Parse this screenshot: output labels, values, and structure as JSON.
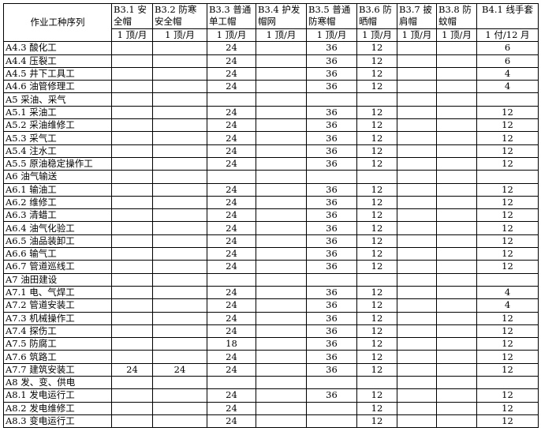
{
  "table": {
    "first_header": "作业工种序列",
    "columns": [
      {
        "name": "B3.1 安全帽",
        "unit": "1 顶/月"
      },
      {
        "name": "B3.2 防寒安全帽",
        "unit": "1 顶/月"
      },
      {
        "name": "B3.3 普通单工帽",
        "unit": "1 顶/月"
      },
      {
        "name": "B3.4 护发帽网",
        "unit": "1 顶/月"
      },
      {
        "name": "B3.5 普通防寒帽",
        "unit": "1 顶/月"
      },
      {
        "name": "B3.6 防晒帽",
        "unit": "1 顶/月"
      },
      {
        "name": "B3.7 披肩帽",
        "unit": "1 顶/月"
      },
      {
        "name": "B3.8 防蚊帽",
        "unit": "1 顶/月"
      },
      {
        "name": "B4.1 线手套",
        "unit": "1 付/12 月"
      }
    ],
    "rows": [
      {
        "label": "A4.3 酸化工",
        "values": [
          "",
          "",
          "24",
          "",
          "36",
          "12",
          "",
          "",
          "6"
        ]
      },
      {
        "label": "A4.4 压裂工",
        "values": [
          "",
          "",
          "24",
          "",
          "36",
          "12",
          "",
          "",
          "6"
        ]
      },
      {
        "label": "A4.5 井下工具工",
        "values": [
          "",
          "",
          "24",
          "",
          "36",
          "12",
          "",
          "",
          "4"
        ]
      },
      {
        "label": "A4.6 油管修理工",
        "values": [
          "",
          "",
          "24",
          "",
          "36",
          "12",
          "",
          "",
          "4"
        ]
      },
      {
        "label": "A5 采油、采气",
        "values": [
          "",
          "",
          "",
          "",
          "",
          "",
          "",
          "",
          ""
        ]
      },
      {
        "label": "A5.1 采油工",
        "values": [
          "",
          "",
          "24",
          "",
          "36",
          "12",
          "",
          "",
          "12"
        ]
      },
      {
        "label": "A5.2 采油维修工",
        "values": [
          "",
          "",
          "24",
          "",
          "36",
          "12",
          "",
          "",
          "12"
        ]
      },
      {
        "label": "A5.3 采气工",
        "values": [
          "",
          "",
          "24",
          "",
          "36",
          "12",
          "",
          "",
          "12"
        ]
      },
      {
        "label": "A5.4 注水工",
        "values": [
          "",
          "",
          "24",
          "",
          "36",
          "12",
          "",
          "",
          "12"
        ]
      },
      {
        "label": "A5.5 原油稳定操作工",
        "values": [
          "",
          "",
          "24",
          "",
          "36",
          "12",
          "",
          "",
          "12"
        ]
      },
      {
        "label": "A6 油气输送",
        "values": [
          "",
          "",
          "",
          "",
          "",
          "",
          "",
          "",
          ""
        ]
      },
      {
        "label": "A6.1 输油工",
        "values": [
          "",
          "",
          "24",
          "",
          "36",
          "12",
          "",
          "",
          "12"
        ]
      },
      {
        "label": "A6.2 维修工",
        "values": [
          "",
          "",
          "24",
          "",
          "36",
          "12",
          "",
          "",
          "12"
        ]
      },
      {
        "label": "A6.3 清蜡工",
        "values": [
          "",
          "",
          "24",
          "",
          "36",
          "12",
          "",
          "",
          "12"
        ]
      },
      {
        "label": "A6.4 油气化验工",
        "values": [
          "",
          "",
          "24",
          "",
          "36",
          "12",
          "",
          "",
          "12"
        ]
      },
      {
        "label": "A6.5 油品装卸工",
        "values": [
          "",
          "",
          "24",
          "",
          "36",
          "12",
          "",
          "",
          "12"
        ]
      },
      {
        "label": "A6.6 输气工",
        "values": [
          "",
          "",
          "24",
          "",
          "36",
          "12",
          "",
          "",
          "12"
        ]
      },
      {
        "label": "A6.7 管道巡线工",
        "values": [
          "",
          "",
          "24",
          "",
          "36",
          "12",
          "",
          "",
          "12"
        ]
      },
      {
        "label": "A7 油田建设",
        "values": [
          "",
          "",
          "",
          "",
          "",
          "",
          "",
          "",
          ""
        ]
      },
      {
        "label": "A7.1 电、气焊工",
        "values": [
          "",
          "",
          "24",
          "",
          "36",
          "12",
          "",
          "",
          "4"
        ]
      },
      {
        "label": "A7.2 管道安装工",
        "values": [
          "",
          "",
          "24",
          "",
          "36",
          "12",
          "",
          "",
          "4"
        ]
      },
      {
        "label": "A7.3 机械操作工",
        "values": [
          "",
          "",
          "24",
          "",
          "36",
          "12",
          "",
          "",
          "12"
        ]
      },
      {
        "label": "A7.4 探伤工",
        "values": [
          "",
          "",
          "24",
          "",
          "36",
          "12",
          "",
          "",
          "12"
        ]
      },
      {
        "label": "A7.5 防腐工",
        "values": [
          "",
          "",
          "18",
          "",
          "36",
          "12",
          "",
          "",
          "12"
        ]
      },
      {
        "label": "A7.6 筑路工",
        "values": [
          "",
          "",
          "24",
          "",
          "36",
          "12",
          "",
          "",
          "12"
        ]
      },
      {
        "label": "A7.7 建筑安装工",
        "values": [
          "24",
          "24",
          "24",
          "",
          "36",
          "12",
          "",
          "",
          "12"
        ]
      },
      {
        "label": "A8 发、变、供电",
        "values": [
          "",
          "",
          "",
          "",
          "",
          "",
          "",
          "",
          ""
        ]
      },
      {
        "label": "A8.1 发电运行工",
        "values": [
          "",
          "",
          "24",
          "",
          "36",
          "12",
          "",
          "",
          "12"
        ]
      },
      {
        "label": "A8.2 发电维修工",
        "values": [
          "",
          "",
          "24",
          "",
          "",
          "12",
          "",
          "",
          "12"
        ]
      },
      {
        "label": "A8.3 变电运行工",
        "values": [
          "",
          "",
          "24",
          "",
          "",
          "12",
          "",
          "",
          "12"
        ]
      }
    ]
  }
}
